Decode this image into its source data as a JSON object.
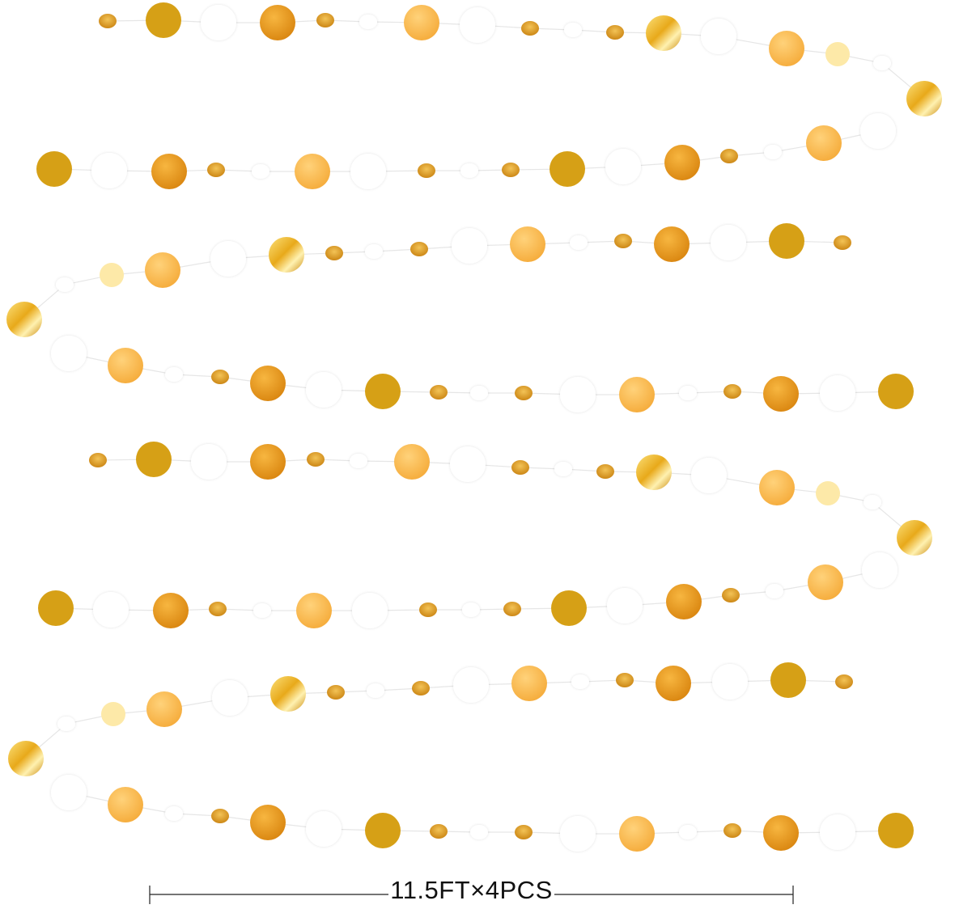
{
  "product": {
    "dimension_label": "11.5FT×4PCS",
    "strand_count": 4
  },
  "colors": {
    "deep_gold": "#d6a016",
    "gold": "#e2961c",
    "light_gold": "#fbbd55",
    "foil": "#f2c21e",
    "white": "#ffffff",
    "string": "#e6e6e6"
  }
}
